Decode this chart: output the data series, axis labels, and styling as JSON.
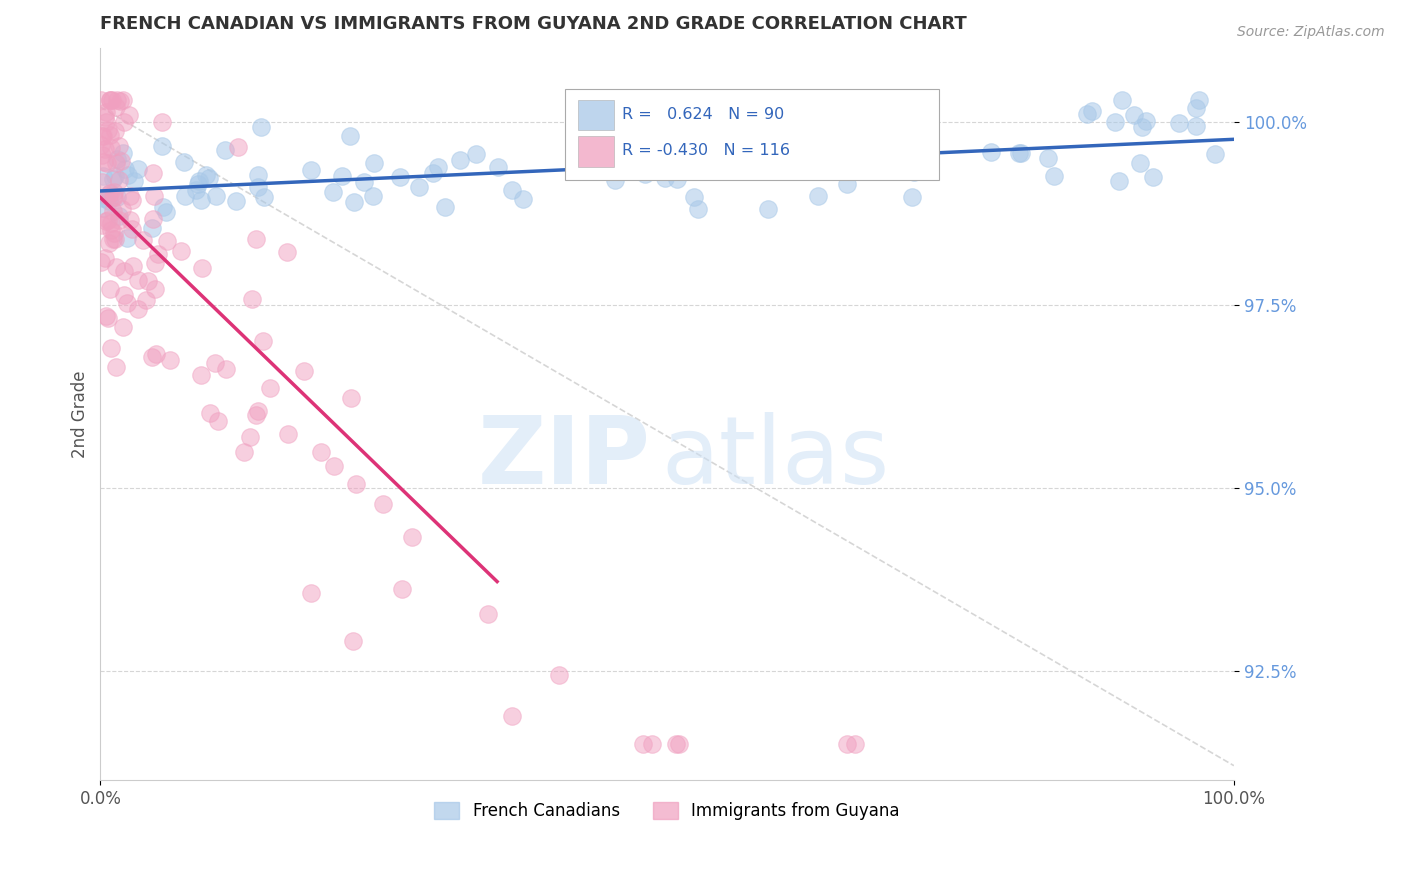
{
  "title": "FRENCH CANADIAN VS IMMIGRANTS FROM GUYANA 2ND GRADE CORRELATION CHART",
  "source_text": "Source: ZipAtlas.com",
  "ylabel": "2nd Grade",
  "xlim": [
    0.0,
    100.0
  ],
  "ylim": [
    91.0,
    101.0
  ],
  "yticks": [
    92.5,
    95.0,
    97.5,
    100.0
  ],
  "xtick_labels": [
    "0.0%",
    "100.0%"
  ],
  "ytick_labels": [
    "92.5%",
    "95.0%",
    "97.5%",
    "100.0%"
  ],
  "blue_R": 0.624,
  "blue_N": 90,
  "pink_R": -0.43,
  "pink_N": 116,
  "blue_color": "#a8c8e8",
  "pink_color": "#f0a0c0",
  "trend_blue_color": "#3366bb",
  "trend_pink_color": "#dd3377",
  "legend_label_blue": "French Canadians",
  "legend_label_pink": "Immigrants from Guyana",
  "background_color": "#ffffff",
  "grid_color": "#cccccc",
  "title_color": "#333333",
  "axis_label_color": "#555555",
  "ytick_color": "#6699dd",
  "xtick_color": "#555555"
}
